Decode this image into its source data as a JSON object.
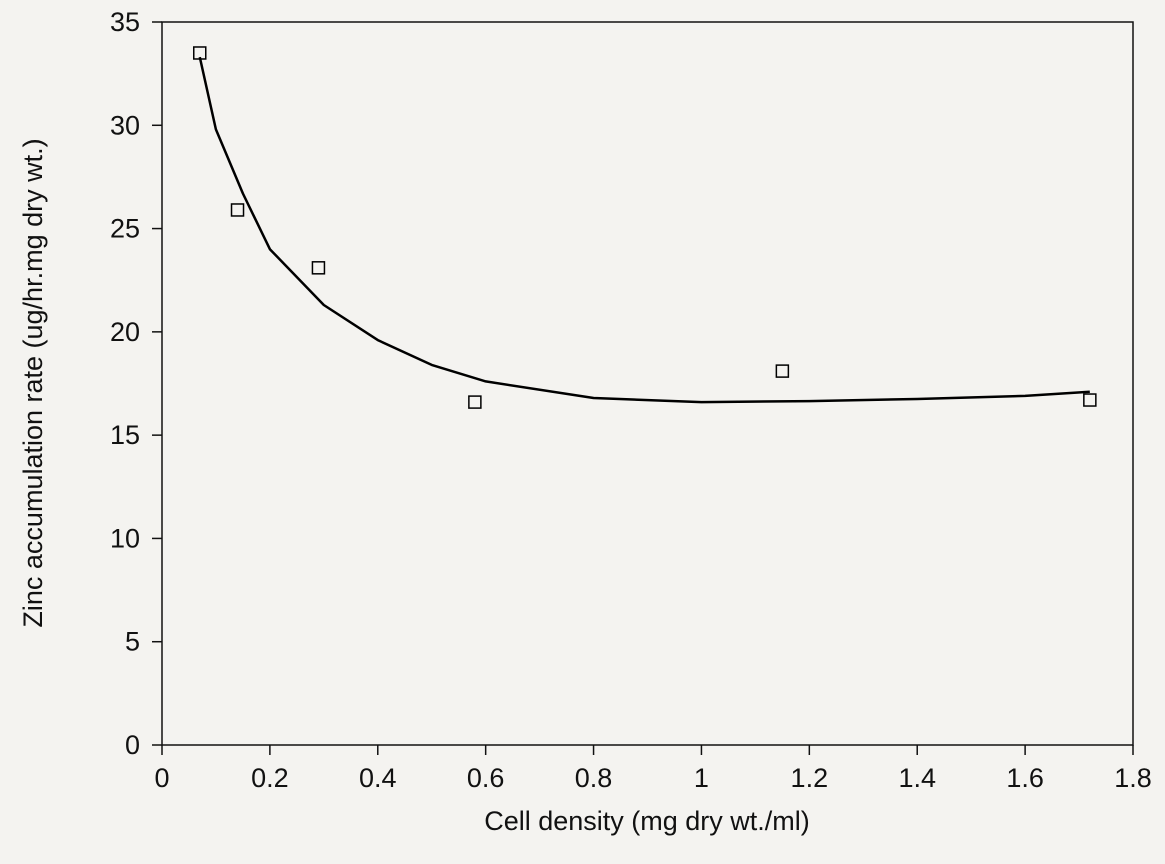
{
  "chart_data": {
    "type": "scatter",
    "x_label": "Cell density (mg dry wt./ml)",
    "y_label": "Zinc accumulation rate (ug/hr.mg dry wt.)",
    "xlim": [
      0,
      1.8
    ],
    "xticks": [
      0,
      0.2,
      0.4,
      0.6,
      0.8,
      1,
      1.2,
      1.4,
      1.6,
      1.8
    ],
    "ylim": [
      0,
      35
    ],
    "yticks": [
      0,
      5,
      10,
      15,
      20,
      25,
      30,
      35
    ],
    "series": [
      {
        "type": "scatter",
        "color": "#000000",
        "x": [
          0.07,
          0.14,
          0.29,
          0.58,
          1.15,
          1.72
        ],
        "values": [
          33.5,
          25.9,
          23.1,
          16.6,
          18.1,
          16.7
        ]
      },
      {
        "type": "line",
        "color": "#000000",
        "x": [
          0.07,
          0.1,
          0.15,
          0.2,
          0.3,
          0.4,
          0.5,
          0.6,
          0.8,
          1.0,
          1.2,
          1.4,
          1.6,
          1.72
        ],
        "values": [
          33.3,
          29.8,
          26.7,
          24.0,
          21.3,
          19.6,
          18.4,
          17.6,
          16.8,
          16.6,
          16.65,
          16.75,
          16.9,
          17.1
        ]
      }
    ]
  }
}
